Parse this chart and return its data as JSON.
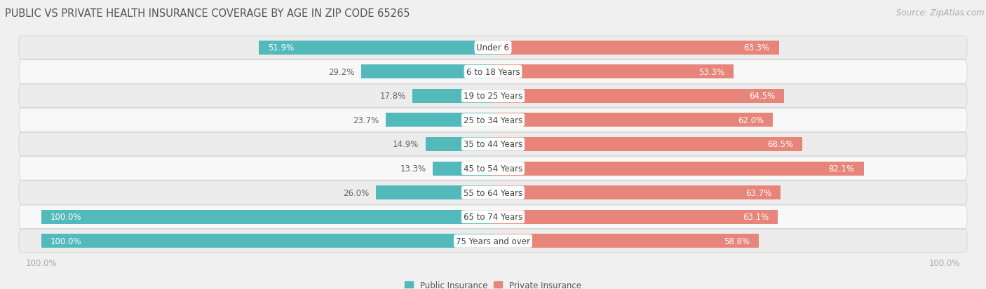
{
  "title": "PUBLIC VS PRIVATE HEALTH INSURANCE COVERAGE BY AGE IN ZIP CODE 65265",
  "source": "Source: ZipAtlas.com",
  "categories": [
    "Under 6",
    "6 to 18 Years",
    "19 to 25 Years",
    "25 to 34 Years",
    "35 to 44 Years",
    "45 to 54 Years",
    "55 to 64 Years",
    "65 to 74 Years",
    "75 Years and over"
  ],
  "public_values": [
    51.9,
    29.2,
    17.8,
    23.7,
    14.9,
    13.3,
    26.0,
    100.0,
    100.0
  ],
  "private_values": [
    63.3,
    53.3,
    64.5,
    62.0,
    68.5,
    82.1,
    63.7,
    63.1,
    58.8
  ],
  "public_color": "#52baba",
  "private_color": "#e8857b",
  "row_bg_even": "#ececec",
  "row_bg_odd": "#f8f8f8",
  "fig_bg_color": "#f0f0f0",
  "title_color": "#555555",
  "axis_label_color": "#aaaaaa",
  "bar_height": 0.58,
  "max_val": 100.0,
  "legend_labels": [
    "Public Insurance",
    "Private Insurance"
  ],
  "x_axis_left_label": "100.0%",
  "x_axis_right_label": "100.0%",
  "title_fontsize": 10.5,
  "label_fontsize": 8.5,
  "value_fontsize": 8.5,
  "category_fontsize": 8.5,
  "source_fontsize": 8.5
}
